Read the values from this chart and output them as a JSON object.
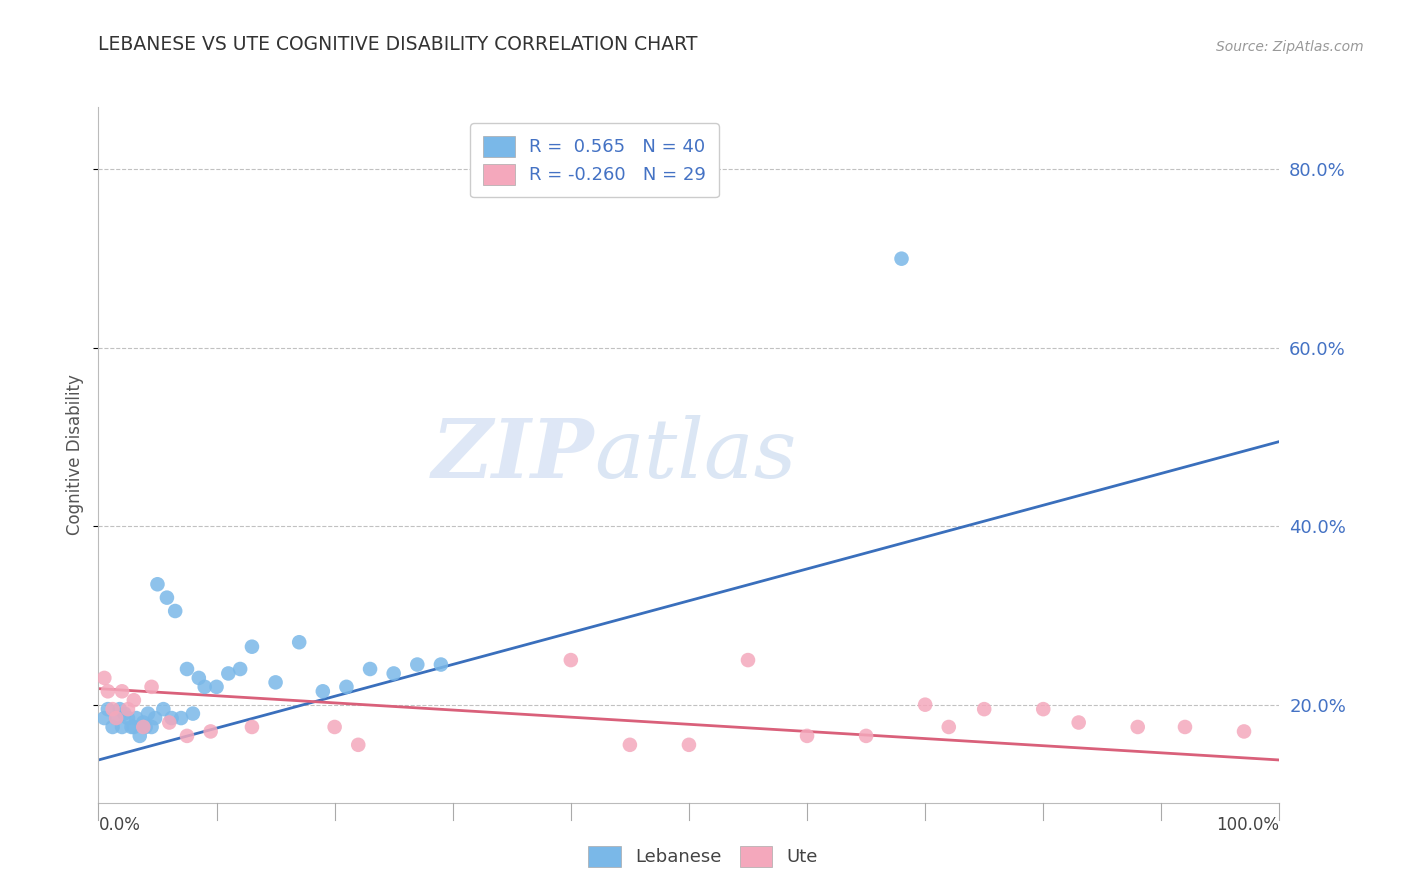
{
  "title": "LEBANESE VS UTE COGNITIVE DISABILITY CORRELATION CHART",
  "source_text": "Source: ZipAtlas.com",
  "ylabel": "Cognitive Disability",
  "watermark_zip": "ZIP",
  "watermark_atlas": "atlas",
  "xlim": [
    0.0,
    1.0
  ],
  "ylim": [
    0.09,
    0.87
  ],
  "yticks": [
    0.2,
    0.4,
    0.6,
    0.8
  ],
  "ytick_labels": [
    "20.0%",
    "40.0%",
    "60.0%",
    "80.0%"
  ],
  "legend_r_blue": "R =  0.565",
  "legend_n_blue": "N = 40",
  "legend_r_pink": "R = -0.260",
  "legend_n_pink": "N = 29",
  "legend_label_blue": "Lebanese",
  "legend_label_pink": "Ute",
  "blue_scatter_color": "#7ab8e8",
  "pink_scatter_color": "#f4a8bc",
  "blue_line_color": "#3a6fbc",
  "pink_line_color": "#d9607a",
  "title_color": "#333333",
  "axis_label_color": "#555555",
  "ytick_label_color": "#4472c4",
  "legend_text_color": "#4472c4",
  "background_color": "#ffffff",
  "grid_color": "#bbbbbb",
  "blue_scatter_x": [
    0.005,
    0.008,
    0.012,
    0.015,
    0.018,
    0.02,
    0.022,
    0.025,
    0.028,
    0.03,
    0.032,
    0.035,
    0.038,
    0.04,
    0.042,
    0.045,
    0.048,
    0.05,
    0.055,
    0.058,
    0.062,
    0.065,
    0.07,
    0.075,
    0.08,
    0.085,
    0.09,
    0.1,
    0.11,
    0.12,
    0.13,
    0.15,
    0.17,
    0.19,
    0.21,
    0.23,
    0.25,
    0.27,
    0.29,
    0.68
  ],
  "blue_scatter_y": [
    0.185,
    0.195,
    0.175,
    0.185,
    0.195,
    0.175,
    0.19,
    0.185,
    0.175,
    0.175,
    0.185,
    0.165,
    0.18,
    0.175,
    0.19,
    0.175,
    0.185,
    0.335,
    0.195,
    0.32,
    0.185,
    0.305,
    0.185,
    0.24,
    0.19,
    0.23,
    0.22,
    0.22,
    0.235,
    0.24,
    0.265,
    0.225,
    0.27,
    0.215,
    0.22,
    0.24,
    0.235,
    0.245,
    0.245,
    0.7
  ],
  "pink_scatter_x": [
    0.005,
    0.008,
    0.012,
    0.015,
    0.02,
    0.025,
    0.03,
    0.038,
    0.045,
    0.06,
    0.075,
    0.095,
    0.13,
    0.2,
    0.22,
    0.4,
    0.45,
    0.5,
    0.55,
    0.6,
    0.65,
    0.7,
    0.72,
    0.75,
    0.8,
    0.83,
    0.88,
    0.92,
    0.97
  ],
  "pink_scatter_y": [
    0.23,
    0.215,
    0.195,
    0.185,
    0.215,
    0.195,
    0.205,
    0.175,
    0.22,
    0.18,
    0.165,
    0.17,
    0.175,
    0.175,
    0.155,
    0.25,
    0.155,
    0.155,
    0.25,
    0.165,
    0.165,
    0.2,
    0.175,
    0.195,
    0.195,
    0.18,
    0.175,
    0.175,
    0.17
  ],
  "blue_line_x": [
    0.0,
    1.0
  ],
  "blue_line_y": [
    0.138,
    0.495
  ],
  "pink_line_x": [
    0.0,
    1.0
  ],
  "pink_line_y": [
    0.218,
    0.138
  ]
}
